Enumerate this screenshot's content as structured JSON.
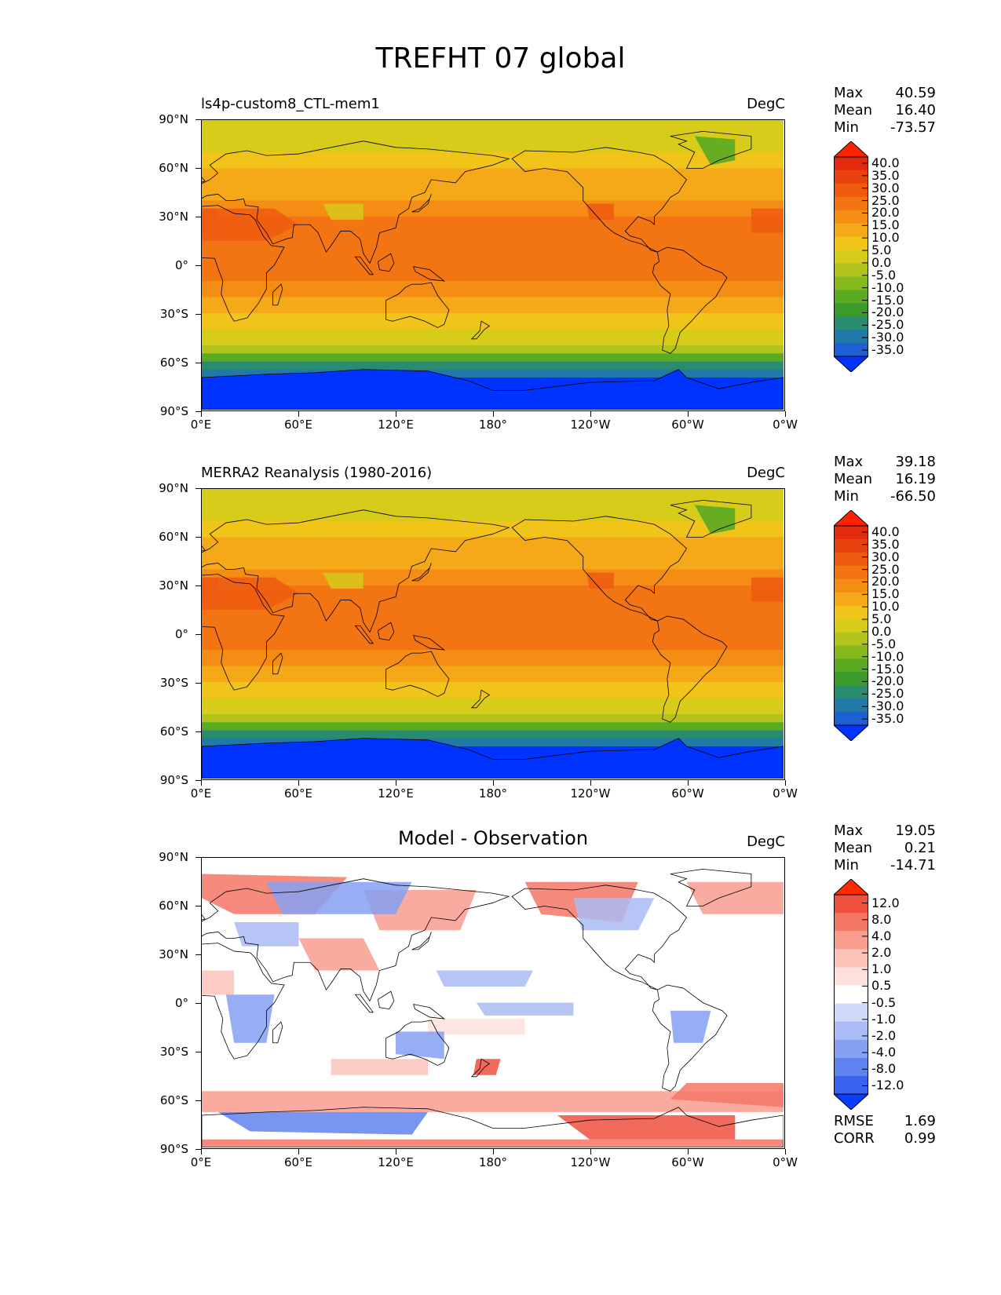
{
  "figure": {
    "title": "TREFHT 07 global"
  },
  "axes": {
    "yticks": [
      "90°N",
      "60°N",
      "30°N",
      "0°",
      "30°S",
      "60°S",
      "90°S"
    ],
    "xticks": [
      "0°E",
      "60°E",
      "120°E",
      "180°",
      "120°W",
      "60°W",
      "0°W"
    ]
  },
  "panels": [
    {
      "title_left": "ls4p-custom8_CTL-mem1",
      "title_center": "",
      "units": "DegC",
      "stats": {
        "max_label": "Max",
        "max": "40.59",
        "mean_label": "Mean",
        "mean": "16.40",
        "min_label": "Min",
        "min": "-73.57"
      },
      "colorbar_ticks": [
        "40.0",
        "35.0",
        "30.0",
        "25.0",
        "20.0",
        "15.0",
        "10.0",
        "5.0",
        "0.0",
        "-5.0",
        "-10.0",
        "-15.0",
        "-20.0",
        "-25.0",
        "-30.0",
        "-35.0"
      ],
      "colormap": "temperature"
    },
    {
      "title_left": "MERRA2 Reanalysis (1980-2016)",
      "title_center": "",
      "units": "DegC",
      "stats": {
        "max_label": "Max",
        "max": "39.18",
        "mean_label": "Mean",
        "mean": "16.19",
        "min_label": "Min",
        "min": "-66.50"
      },
      "colorbar_ticks": [
        "40.0",
        "35.0",
        "30.0",
        "25.0",
        "20.0",
        "15.0",
        "10.0",
        "5.0",
        "0.0",
        "-5.0",
        "-10.0",
        "-15.0",
        "-20.0",
        "-25.0",
        "-30.0",
        "-35.0"
      ],
      "colormap": "temperature"
    },
    {
      "title_left": "",
      "title_center": "Model - Observation",
      "units": "DegC",
      "stats": {
        "max_label": "Max",
        "max": "19.05",
        "mean_label": "Mean",
        "mean": "0.21",
        "min_label": "Min",
        "min": "-14.71"
      },
      "colorbar_ticks": [
        "12.0",
        "8.0",
        "4.0",
        "2.0",
        "1.0",
        "0.5",
        "-0.5",
        "-1.0",
        "-2.0",
        "-4.0",
        "-8.0",
        "-12.0"
      ],
      "colormap": "difference",
      "metrics": {
        "rmse_label": "RMSE",
        "rmse": "1.69",
        "corr_label": "CORR",
        "corr": "0.99"
      }
    }
  ],
  "colors": {
    "temperature": [
      "#0033ff",
      "#1f5fd6",
      "#1f7aa8",
      "#2a8c6e",
      "#3a9b2a",
      "#5aaa22",
      "#86b91e",
      "#b2c41b",
      "#d6cc19",
      "#f0c419",
      "#f5a818",
      "#f58c14",
      "#f37412",
      "#ee5a10",
      "#e8420e",
      "#e22a0c",
      "#ff2200"
    ],
    "difference": [
      "#0a3cff",
      "#3a62f0",
      "#6082ee",
      "#86a0f2",
      "#aabbf5",
      "#cfd9f9",
      "#ffffff",
      "#fde0dc",
      "#fbc2b8",
      "#f89c8e",
      "#f47766",
      "#ef5040",
      "#ff2a00"
    ]
  },
  "chart_data": [
    {
      "type": "heatmap",
      "title": "ls4p-custom8_CTL-mem1",
      "units": "DegC",
      "xlim": [
        0,
        360
      ],
      "ylim": [
        -90,
        90
      ],
      "zlevels": [
        -35,
        -30,
        -25,
        -20,
        -15,
        -10,
        -5,
        0,
        5,
        10,
        15,
        20,
        25,
        30,
        35,
        40
      ],
      "max": 40.59,
      "mean": 16.4,
      "min": -73.57
    },
    {
      "type": "heatmap",
      "title": "MERRA2 Reanalysis (1980-2016)",
      "units": "DegC",
      "xlim": [
        0,
        360
      ],
      "ylim": [
        -90,
        90
      ],
      "zlevels": [
        -35,
        -30,
        -25,
        -20,
        -15,
        -10,
        -5,
        0,
        5,
        10,
        15,
        20,
        25,
        30,
        35,
        40
      ],
      "max": 39.18,
      "mean": 16.19,
      "min": -66.5
    },
    {
      "type": "heatmap",
      "title": "Model - Observation",
      "units": "DegC",
      "xlim": [
        0,
        360
      ],
      "ylim": [
        -90,
        90
      ],
      "zlevels": [
        -12,
        -8,
        -4,
        -2,
        -1,
        -0.5,
        0.5,
        1,
        2,
        4,
        8,
        12
      ],
      "max": 19.05,
      "mean": 0.21,
      "min": -14.71,
      "rmse": 1.69,
      "corr": 0.99
    }
  ]
}
